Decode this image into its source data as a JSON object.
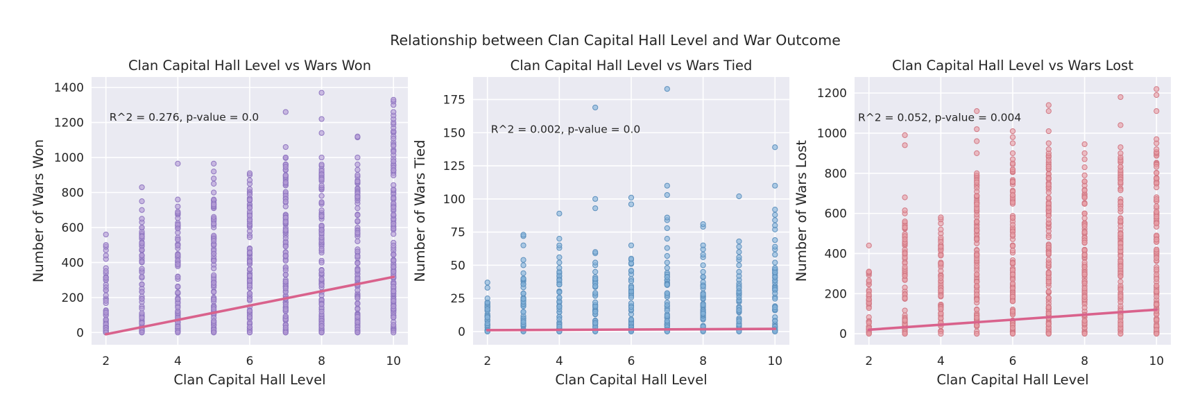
{
  "figure": {
    "title": "Relationship between Clan Capital Hall Level and War Outcome"
  },
  "chart_data": [
    {
      "type": "scatter",
      "title": "Clan Capital Hall Level vs Wars Won",
      "xlabel": "Clan Capital Hall Level",
      "ylabel": "Number of Wars Won",
      "xlim": [
        1.6,
        10.4
      ],
      "ylim": [
        -70,
        1460
      ],
      "xticks": [
        2,
        4,
        6,
        8,
        10
      ],
      "yticks": [
        0,
        200,
        400,
        600,
        800,
        1000,
        1200,
        1400
      ],
      "grid": true,
      "point_color": "#b39bd6",
      "point_edge": "#8f76c0",
      "annotation": "R^2 = 0.276, p-value = 0.0",
      "annotation_pos": [
        2.0,
        1210
      ],
      "regression": {
        "x": [
          2,
          10
        ],
        "y": [
          -10,
          318
        ],
        "color": "#d9628c"
      },
      "points_by_level": [
        {
          "x": 2,
          "dense_max": 420,
          "outliers": [
            440,
            470,
            490,
            500,
            560
          ]
        },
        {
          "x": 3,
          "dense_max": 600,
          "outliers": [
            630,
            650,
            700,
            750,
            830
          ]
        },
        {
          "x": 4,
          "dense_max": 690,
          "outliers": [
            720,
            760,
            965
          ]
        },
        {
          "x": 5,
          "dense_max": 760,
          "outliers": [
            800,
            850,
            880,
            920,
            965
          ]
        },
        {
          "x": 6,
          "dense_max": 820,
          "outliers": [
            850,
            870,
            900,
            910
          ]
        },
        {
          "x": 7,
          "dense_max": 1000,
          "outliers": [
            1060,
            1260
          ]
        },
        {
          "x": 8,
          "dense_max": 960,
          "outliers": [
            1000,
            1140,
            1220,
            1370
          ]
        },
        {
          "x": 9,
          "dense_max": 900,
          "outliers": [
            930,
            960,
            1000,
            1115,
            1120
          ]
        },
        {
          "x": 10,
          "dense_max": 1150,
          "outliers": [
            1170,
            1190,
            1200,
            1220,
            1240,
            1260,
            1300,
            1320,
            1330
          ]
        }
      ]
    },
    {
      "type": "scatter",
      "title": "Clan Capital Hall Level vs Wars Tied",
      "xlabel": "Clan Capital Hall Level",
      "ylabel": "Number of Wars Tied",
      "xlim": [
        1.6,
        10.4
      ],
      "ylim": [
        -10,
        192
      ],
      "xticks": [
        2,
        4,
        6,
        8,
        10
      ],
      "yticks": [
        0,
        25,
        50,
        75,
        100,
        125,
        150,
        175
      ],
      "grid": true,
      "point_color": "#86b4da",
      "point_edge": "#5d90bd",
      "annotation": "R^2 = 0.002, p-value = 0.0",
      "annotation_pos": [
        2.0,
        150
      ],
      "regression": {
        "x": [
          2,
          10
        ],
        "y": [
          1,
          2
        ],
        "color": "#d9628c"
      },
      "points_by_level": [
        {
          "x": 2,
          "dense_max": 22,
          "outliers": [
            25,
            33,
            37
          ]
        },
        {
          "x": 3,
          "dense_max": 40,
          "outliers": [
            44,
            50,
            54,
            65,
            72,
            73
          ]
        },
        {
          "x": 4,
          "dense_max": 48,
          "outliers": [
            52,
            56,
            63,
            65,
            70,
            89
          ]
        },
        {
          "x": 5,
          "dense_max": 45,
          "outliers": [
            50,
            52,
            59,
            60,
            93,
            100,
            169
          ]
        },
        {
          "x": 6,
          "dense_max": 55,
          "outliers": [
            65,
            96,
            101
          ]
        },
        {
          "x": 7,
          "dense_max": 48,
          "outliers": [
            52,
            57,
            63,
            70,
            78,
            84,
            86,
            103,
            110,
            183
          ]
        },
        {
          "x": 8,
          "dense_max": 45,
          "outliers": [
            50,
            56,
            58,
            62,
            65,
            79,
            81
          ]
        },
        {
          "x": 9,
          "dense_max": 45,
          "outliers": [
            50,
            54,
            56,
            60,
            64,
            68,
            102
          ]
        },
        {
          "x": 10,
          "dense_max": 48,
          "outliers": [
            52,
            58,
            62,
            64,
            69,
            77,
            80,
            84,
            88,
            92,
            110,
            139
          ]
        }
      ]
    },
    {
      "type": "scatter",
      "title": "Clan Capital Hall Level vs Wars Lost",
      "xlabel": "Clan Capital Hall Level",
      "ylabel": "Number of Wars Lost",
      "xlim": [
        1.6,
        10.4
      ],
      "ylim": [
        -55,
        1280
      ],
      "xticks": [
        2,
        4,
        6,
        8,
        10
      ],
      "yticks": [
        0,
        200,
        400,
        600,
        800,
        1000,
        1200
      ],
      "grid": true,
      "point_color": "#e8a0a8",
      "point_edge": "#d17884",
      "annotation": "R^2 = 0.052, p-value = 0.004",
      "annotation_pos": [
        1.6,
        1060
      ],
      "regression": {
        "x": [
          2,
          10
        ],
        "y": [
          20,
          120
        ],
        "color": "#d9628c"
      },
      "points_by_level": [
        {
          "x": 2,
          "dense_max": 310,
          "outliers": [
            440
          ]
        },
        {
          "x": 3,
          "dense_max": 560,
          "outliers": [
            600,
            615,
            680,
            940,
            990
          ]
        },
        {
          "x": 4,
          "dense_max": 500,
          "outliers": [
            520,
            550,
            570,
            580
          ]
        },
        {
          "x": 5,
          "dense_max": 790,
          "outliers": [
            800,
            900,
            960,
            1020,
            1110
          ]
        },
        {
          "x": 6,
          "dense_max": 850,
          "outliers": [
            870,
            900,
            950,
            980,
            1010
          ]
        },
        {
          "x": 7,
          "dense_max": 900,
          "outliers": [
            920,
            950,
            1010,
            1110,
            1140
          ]
        },
        {
          "x": 8,
          "dense_max": 760,
          "outliers": [
            790,
            830,
            870,
            900,
            945
          ]
        },
        {
          "x": 9,
          "dense_max": 880,
          "outliers": [
            900,
            930,
            1040,
            1180
          ]
        },
        {
          "x": 10,
          "dense_max": 920,
          "outliers": [
            950,
            970,
            1110,
            1190,
            1220
          ]
        }
      ]
    }
  ]
}
